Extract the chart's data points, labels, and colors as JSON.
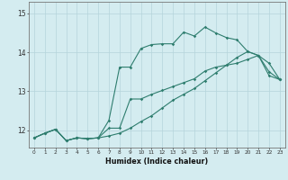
{
  "title": "",
  "xlabel": "Humidex (Indice chaleur)",
  "bg_color": "#d4ecf0",
  "line_color": "#2e7d6e",
  "grid_color": "#b5d5db",
  "xlim": [
    -0.5,
    23.5
  ],
  "ylim": [
    11.55,
    15.3
  ],
  "yticks": [
    12,
    13,
    14,
    15
  ],
  "xticks": [
    0,
    1,
    2,
    3,
    4,
    5,
    6,
    7,
    8,
    9,
    10,
    11,
    12,
    13,
    14,
    15,
    16,
    17,
    18,
    19,
    20,
    21,
    22,
    23
  ],
  "series1_x": [
    0,
    1,
    2,
    3,
    4,
    5,
    6,
    7,
    8,
    9,
    10,
    11,
    12,
    13,
    14,
    15,
    16,
    17,
    18,
    19,
    20,
    21,
    22,
    23
  ],
  "series1_y": [
    11.8,
    11.92,
    12.02,
    11.73,
    11.8,
    11.78,
    11.8,
    12.25,
    13.62,
    13.62,
    14.1,
    14.2,
    14.22,
    14.22,
    14.52,
    14.42,
    14.65,
    14.5,
    14.38,
    14.32,
    14.02,
    13.92,
    13.4,
    13.3
  ],
  "series2_x": [
    0,
    1,
    2,
    3,
    4,
    5,
    6,
    7,
    8,
    9,
    10,
    11,
    12,
    13,
    14,
    15,
    16,
    17,
    18,
    19,
    20,
    21,
    22,
    23
  ],
  "series2_y": [
    11.8,
    11.92,
    12.02,
    11.73,
    11.8,
    11.78,
    11.8,
    12.05,
    12.05,
    12.8,
    12.8,
    12.92,
    13.02,
    13.12,
    13.22,
    13.32,
    13.52,
    13.62,
    13.67,
    13.72,
    13.82,
    13.92,
    13.72,
    13.3
  ],
  "series3_x": [
    0,
    1,
    2,
    3,
    4,
    5,
    6,
    7,
    8,
    9,
    10,
    11,
    12,
    13,
    14,
    15,
    16,
    17,
    18,
    19,
    20,
    21,
    22,
    23
  ],
  "series3_y": [
    11.8,
    11.92,
    12.02,
    11.73,
    11.8,
    11.78,
    11.8,
    11.85,
    11.92,
    12.05,
    12.22,
    12.37,
    12.57,
    12.77,
    12.92,
    13.07,
    13.27,
    13.47,
    13.67,
    13.87,
    14.02,
    13.92,
    13.5,
    13.3
  ]
}
